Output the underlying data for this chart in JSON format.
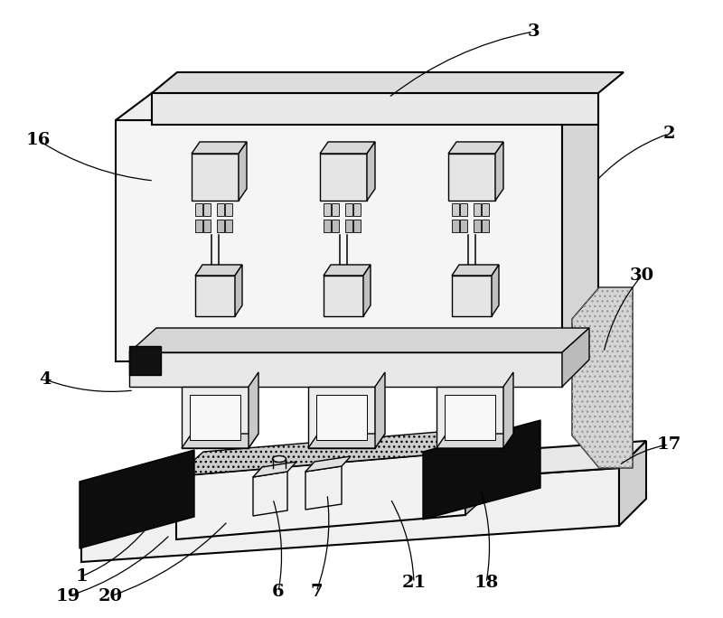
{
  "bg_color": "#ffffff",
  "line_color": "#000000",
  "dark_fill": "#1a1a1a",
  "gray_fill": "#888888",
  "light_gray": "#cccccc",
  "labels_data": [
    [
      "3",
      590,
      35,
      430,
      108
    ],
    [
      "2",
      740,
      148,
      660,
      200
    ],
    [
      "16",
      42,
      155,
      170,
      200
    ],
    [
      "4",
      50,
      420,
      148,
      432
    ],
    [
      "1",
      90,
      638,
      162,
      585
    ],
    [
      "30",
      710,
      305,
      668,
      390
    ],
    [
      "17",
      740,
      492,
      685,
      515
    ],
    [
      "19",
      75,
      660,
      188,
      592
    ],
    [
      "20",
      122,
      660,
      252,
      577
    ],
    [
      "6",
      308,
      655,
      302,
      552
    ],
    [
      "7",
      350,
      655,
      362,
      547
    ],
    [
      "21",
      458,
      645,
      432,
      552
    ],
    [
      "18",
      538,
      645,
      532,
      542
    ]
  ]
}
